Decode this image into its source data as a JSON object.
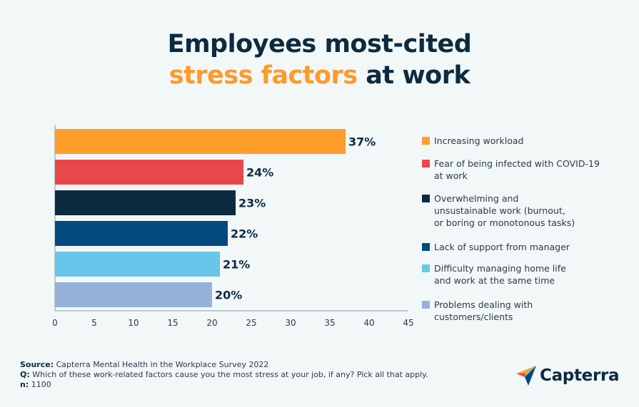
{
  "title": {
    "line1": "Employees most-cited",
    "accent": "stress factors",
    "rest": " at work"
  },
  "chart_data": {
    "type": "bar",
    "orientation": "horizontal",
    "categories": [
      "Increasing workload",
      "Fear of being infected with COVID-19 at work",
      "Overwhelming and unsustainable work (burnout, or boring or monotonous tasks)",
      "Lack of support from manager",
      "Difficulty managing home life and work at the same time",
      "Problems dealing with customers/clients"
    ],
    "values": [
      37,
      24,
      23,
      22,
      21,
      20
    ],
    "value_labels": [
      "37%",
      "24%",
      "23%",
      "22%",
      "21%",
      "20%"
    ],
    "colors": [
      "#ff9e2c",
      "#e8484a",
      "#0c2b40",
      "#054a7f",
      "#68c6ea",
      "#94b2d8"
    ],
    "legend_lines": [
      [
        "Increasing workload"
      ],
      [
        "Fear of being infected with COVID-19",
        "at work"
      ],
      [
        "Overwhelming and",
        "unsustainable work (burnout,",
        "or boring or monotonous tasks)"
      ],
      [
        "Lack of support from manager"
      ],
      [
        "Difficulty managing home life",
        "and work at the same time"
      ],
      [
        "Problems dealing with",
        "customers/clients"
      ]
    ],
    "xlim": [
      0,
      45
    ],
    "xticks": [
      0,
      5,
      10,
      15,
      20,
      25,
      30,
      35,
      40,
      45
    ],
    "grid": false,
    "legend_placement": "right"
  },
  "footer": {
    "source_label": "Source:",
    "source_text": " Capterra Mental Health in the Workplace Survey 2022",
    "q_label": "Q:",
    "q_text": " Which of these work-related factors cause you the most stress at your job, if any? Pick all that apply.",
    "n_label": "n:",
    "n_text": " 1100"
  },
  "brand": {
    "name": "Capterra",
    "logo_icon": "capterra-arrow-icon"
  }
}
